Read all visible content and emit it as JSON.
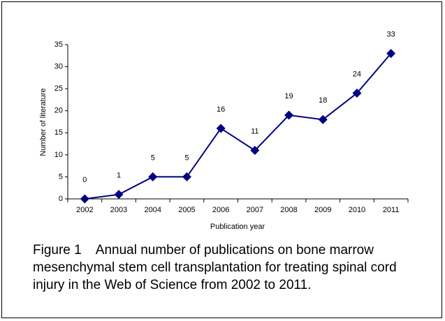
{
  "chart_data": {
    "type": "line",
    "x_label": "Publication year",
    "y_label": "Number of literature",
    "categories": [
      "2002",
      "2003",
      "2004",
      "2005",
      "2006",
      "2007",
      "2008",
      "2009",
      "2010",
      "2011"
    ],
    "values": [
      0,
      1,
      5,
      5,
      16,
      11,
      19,
      18,
      24,
      33
    ],
    "color": "#000080",
    "ylim": [
      0,
      35
    ],
    "yticks": [
      0,
      5,
      10,
      15,
      20,
      25,
      30,
      35
    ],
    "grid": false,
    "caption": "Figure 1    Annual number of publications on bone marrow mesenchymal stem cell transplantation for treating spinal cord injury in the Web of Science from 2002 to 2011."
  }
}
